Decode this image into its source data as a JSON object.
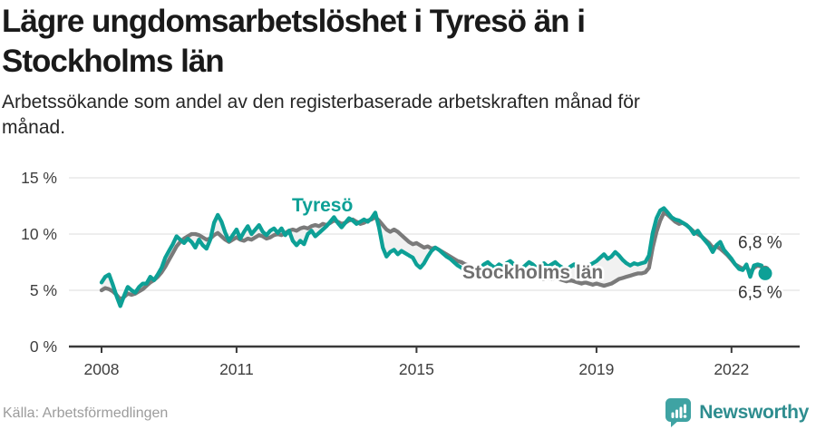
{
  "header": {
    "title": "Lägre ungdomsarbetslöshet i Tyresö än i\nStockholms län",
    "subtitle": "Arbetssökande som andel av den registerbaserade arbetskraften månad för\nmånad."
  },
  "footer": {
    "source": "Källa: Arbetsförmedlingen",
    "brand": "Newsworthy"
  },
  "colors": {
    "tyreso": "#0DA096",
    "stockholm": "#7A7A7A",
    "between_fill": "#F1F1F1",
    "gridline": "#E3E3E3",
    "axis": "#3A3A3A",
    "brand_teal": "#3FA3A3"
  },
  "chart_data": {
    "type": "line",
    "title": "Lägre ungdomsarbetslöshet i Tyresö än i Stockholms län",
    "x_unit": "month",
    "x_start": "2008-01",
    "x_end": "2022-10",
    "ylim": [
      0,
      15
    ],
    "grid": true,
    "legend_position": "inline-labels",
    "y_ticks": [
      {
        "label": "0 %",
        "value": 0
      },
      {
        "label": "5 %",
        "value": 5
      },
      {
        "label": "10 %",
        "value": 10
      },
      {
        "label": "15 %",
        "value": 15
      }
    ],
    "x_ticks": [
      {
        "label": "2008",
        "month_index": 0
      },
      {
        "label": "2011",
        "month_index": 36
      },
      {
        "label": "2015",
        "month_index": 84
      },
      {
        "label": "2019",
        "month_index": 132
      },
      {
        "label": "2022",
        "month_index": 168
      }
    ],
    "series": [
      {
        "name": "Tyresö",
        "color": "#0DA096",
        "end_label": "6,5 %",
        "values": [
          5.7,
          6.2,
          6.4,
          5.5,
          4.5,
          3.6,
          4.5,
          5.3,
          5.0,
          4.8,
          5.3,
          5.6,
          5.6,
          6.2,
          5.9,
          6.4,
          7.0,
          7.9,
          8.5,
          9.1,
          9.8,
          9.5,
          9.2,
          9.6,
          9.3,
          8.8,
          9.5,
          9.0,
          8.7,
          9.5,
          11.0,
          11.7,
          11.1,
          10.1,
          9.4,
          9.9,
          10.4,
          9.6,
          10.2,
          10.7,
          10.0,
          10.4,
          10.8,
          10.2,
          9.9,
          10.3,
          10.5,
          10.1,
          10.5,
          9.9,
          10.3,
          9.4,
          9.0,
          9.4,
          9.1,
          10.0,
          10.3,
          9.8,
          10.1,
          10.4,
          10.7,
          11.1,
          11.5,
          11.0,
          10.6,
          11.0,
          11.4,
          11.2,
          10.9,
          11.1,
          11.3,
          11.1,
          11.4,
          11.9,
          10.6,
          8.8,
          8.0,
          8.4,
          8.6,
          8.2,
          8.5,
          8.3,
          8.1,
          7.9,
          7.3,
          7.0,
          7.4,
          8.0,
          8.5,
          8.8,
          8.6,
          8.3,
          8.0,
          7.8,
          7.5,
          7.2,
          7.0,
          6.8,
          7.1,
          6.9,
          6.7,
          7.0,
          7.3,
          7.5,
          7.2,
          7.0,
          7.3,
          7.1,
          7.4,
          7.6,
          7.3,
          7.1,
          6.9,
          7.2,
          7.5,
          7.3,
          7.0,
          7.2,
          7.4,
          7.1,
          7.3,
          7.5,
          7.2,
          7.0,
          6.8,
          7.1,
          7.3,
          7.0,
          6.8,
          7.0,
          7.2,
          7.4,
          7.6,
          7.9,
          8.2,
          7.8,
          8.0,
          8.4,
          8.1,
          7.7,
          7.4,
          7.2,
          7.4,
          7.3,
          7.4,
          7.5,
          8.1,
          10.1,
          11.4,
          12.1,
          12.3,
          11.9,
          11.5,
          11.3,
          11.2,
          11.0,
          10.8,
          10.5,
          10.0,
          10.3,
          9.8,
          9.4,
          9.0,
          8.4,
          9.0,
          9.3,
          8.6,
          8.2,
          7.8,
          7.3,
          6.9,
          6.8,
          7.3,
          6.2,
          7.2,
          7.3,
          7.2,
          6.5
        ]
      },
      {
        "name": "Stockholms län",
        "color": "#7A7A7A",
        "end_label": "6,8 %",
        "values": [
          5.0,
          5.2,
          5.1,
          4.9,
          4.6,
          4.2,
          4.4,
          4.7,
          4.6,
          4.7,
          4.9,
          5.1,
          5.4,
          5.7,
          5.9,
          6.2,
          6.6,
          7.1,
          7.7,
          8.3,
          8.9,
          9.3,
          9.6,
          9.8,
          10.0,
          10.0,
          9.9,
          9.7,
          9.5,
          9.6,
          9.9,
          10.1,
          9.8,
          9.5,
          9.3,
          9.5,
          9.7,
          9.5,
          9.4,
          9.6,
          9.5,
          9.7,
          9.9,
          9.8,
          9.6,
          9.7,
          9.9,
          10.0,
          9.9,
          10.1,
          10.3,
          10.4,
          10.3,
          10.5,
          10.6,
          10.5,
          10.7,
          10.8,
          10.7,
          10.9,
          10.8,
          11.0,
          11.2,
          11.1,
          10.9,
          11.0,
          11.2,
          11.3,
          11.1,
          10.9,
          11.0,
          11.2,
          11.3,
          11.5,
          11.2,
          10.8,
          10.4,
          10.2,
          10.4,
          10.2,
          9.9,
          9.6,
          9.3,
          9.1,
          9.2,
          9.0,
          8.8,
          8.9,
          8.7,
          8.8,
          8.6,
          8.4,
          8.2,
          8.0,
          7.8,
          7.6,
          7.5,
          7.3,
          7.2,
          7.0,
          6.9,
          7.0,
          6.8,
          6.7,
          6.6,
          6.5,
          6.4,
          6.5,
          6.4,
          6.5,
          6.4,
          6.3,
          6.2,
          6.3,
          6.2,
          6.1,
          6.2,
          6.1,
          6.0,
          6.1,
          6.0,
          6.1,
          6.0,
          5.9,
          5.8,
          5.9,
          5.8,
          5.7,
          5.6,
          5.7,
          5.6,
          5.5,
          5.6,
          5.5,
          5.4,
          5.5,
          5.6,
          5.8,
          6.0,
          6.1,
          6.2,
          6.3,
          6.4,
          6.5,
          6.5,
          6.6,
          7.0,
          8.8,
          10.2,
          11.2,
          11.9,
          11.7,
          11.4,
          11.1,
          10.9,
          11.0,
          10.8,
          10.5,
          10.2,
          10.0,
          9.8,
          9.5,
          9.2,
          8.8,
          8.9,
          8.7,
          8.4,
          8.1,
          7.7,
          7.3,
          7.1,
          6.9,
          7.1,
          6.6,
          7.0,
          7.2,
          7.1,
          6.8
        ]
      }
    ],
    "between_fill": "#F1F1F1"
  }
}
